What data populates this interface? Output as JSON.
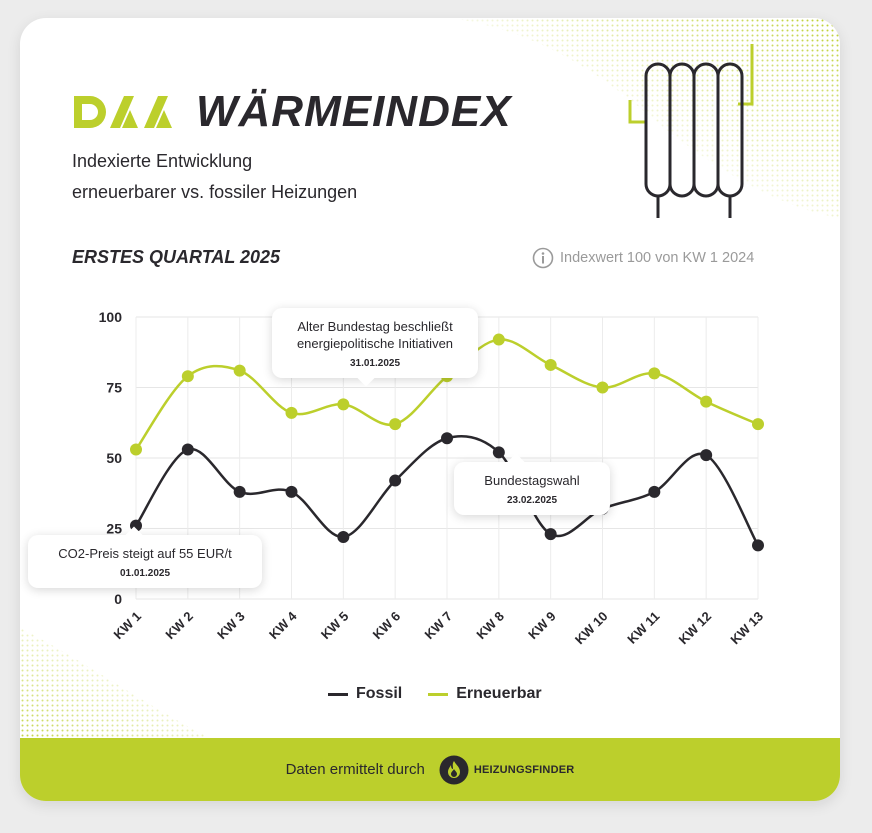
{
  "header": {
    "logo_text": "DAA",
    "title": "WÄRMEINDEX",
    "subtitle_line1": "Indexierte Entwicklung",
    "subtitle_line2": "erneuerbarer vs. fossiler Heizungen"
  },
  "colors": {
    "accent": "#bccf2c",
    "dark": "#2a282d",
    "grid": "#e6e6e6"
  },
  "chart_meta": {
    "quarter_label": "ERSTES QUARTAL 2025",
    "index_note": "Indexwert 100 von KW 1 2024",
    "info_icon": "info-circle-icon"
  },
  "chart_data": {
    "type": "line",
    "categories": [
      "KW 1",
      "KW 2",
      "KW 3",
      "KW 4",
      "KW 5",
      "KW 6",
      "KW 7",
      "KW 8",
      "KW 9",
      "KW 10",
      "KW 11",
      "KW 12",
      "KW 13"
    ],
    "series": [
      {
        "name": "Fossil",
        "color": "#2a282d",
        "values": [
          26,
          53,
          38,
          38,
          22,
          42,
          57,
          52,
          23,
          32,
          38,
          51,
          19
        ]
      },
      {
        "name": "Erneuerbar",
        "color": "#bccf2c",
        "values": [
          53,
          79,
          81,
          66,
          69,
          62,
          79,
          92,
          83,
          75,
          80,
          70,
          62
        ]
      }
    ],
    "yticks": [
      0,
      25,
      50,
      75,
      100
    ],
    "ylim": [
      0,
      100
    ],
    "grid": true,
    "legend_position": "bottom",
    "annotations": [
      {
        "text": "Alter Bundestag beschließt energiepolitische Initiativen",
        "date": "31.01.2025"
      },
      {
        "text": "Bundestagswahl",
        "date": "23.02.2025"
      },
      {
        "text": "CO2-Preis steigt auf 55 EUR/t",
        "date": "01.01.2025"
      }
    ]
  },
  "footer": {
    "text": "Daten ermittelt durch",
    "brand": "HEIZUNGSFINDER",
    "brand_icon": "flame-icon"
  }
}
